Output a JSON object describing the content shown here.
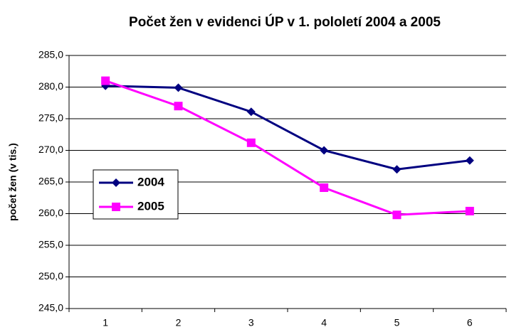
{
  "chart_data": {
    "type": "line",
    "title": "Počet žen v evidenci ÚP v 1. pololetí 2004 a 2005",
    "y_label": "počet žen (v tis.)",
    "categories": [
      "1",
      "2",
      "3",
      "4",
      "5",
      "6"
    ],
    "series": [
      {
        "name": "2004",
        "color": "#000080",
        "marker": "diamond",
        "values": [
          280.2,
          279.9,
          276.1,
          270.0,
          267.0,
          268.4
        ]
      },
      {
        "name": "2005",
        "color": "#ff00ff",
        "marker": "square",
        "values": [
          281.0,
          277.0,
          271.2,
          264.1,
          259.8,
          260.4
        ]
      }
    ],
    "ylim": [
      245,
      285
    ],
    "yticks": [
      {
        "value": 245,
        "label": "245,0"
      },
      {
        "value": 250,
        "label": "250,0"
      },
      {
        "value": 255,
        "label": "255,0"
      },
      {
        "value": 260,
        "label": "260,0"
      },
      {
        "value": 265,
        "label": "265,0"
      },
      {
        "value": 270,
        "label": "270,0"
      },
      {
        "value": 275,
        "label": "275,0"
      },
      {
        "value": 280,
        "label": "280,0"
      },
      {
        "value": 285,
        "label": "285,0"
      }
    ],
    "grid": true,
    "legend": "left"
  }
}
